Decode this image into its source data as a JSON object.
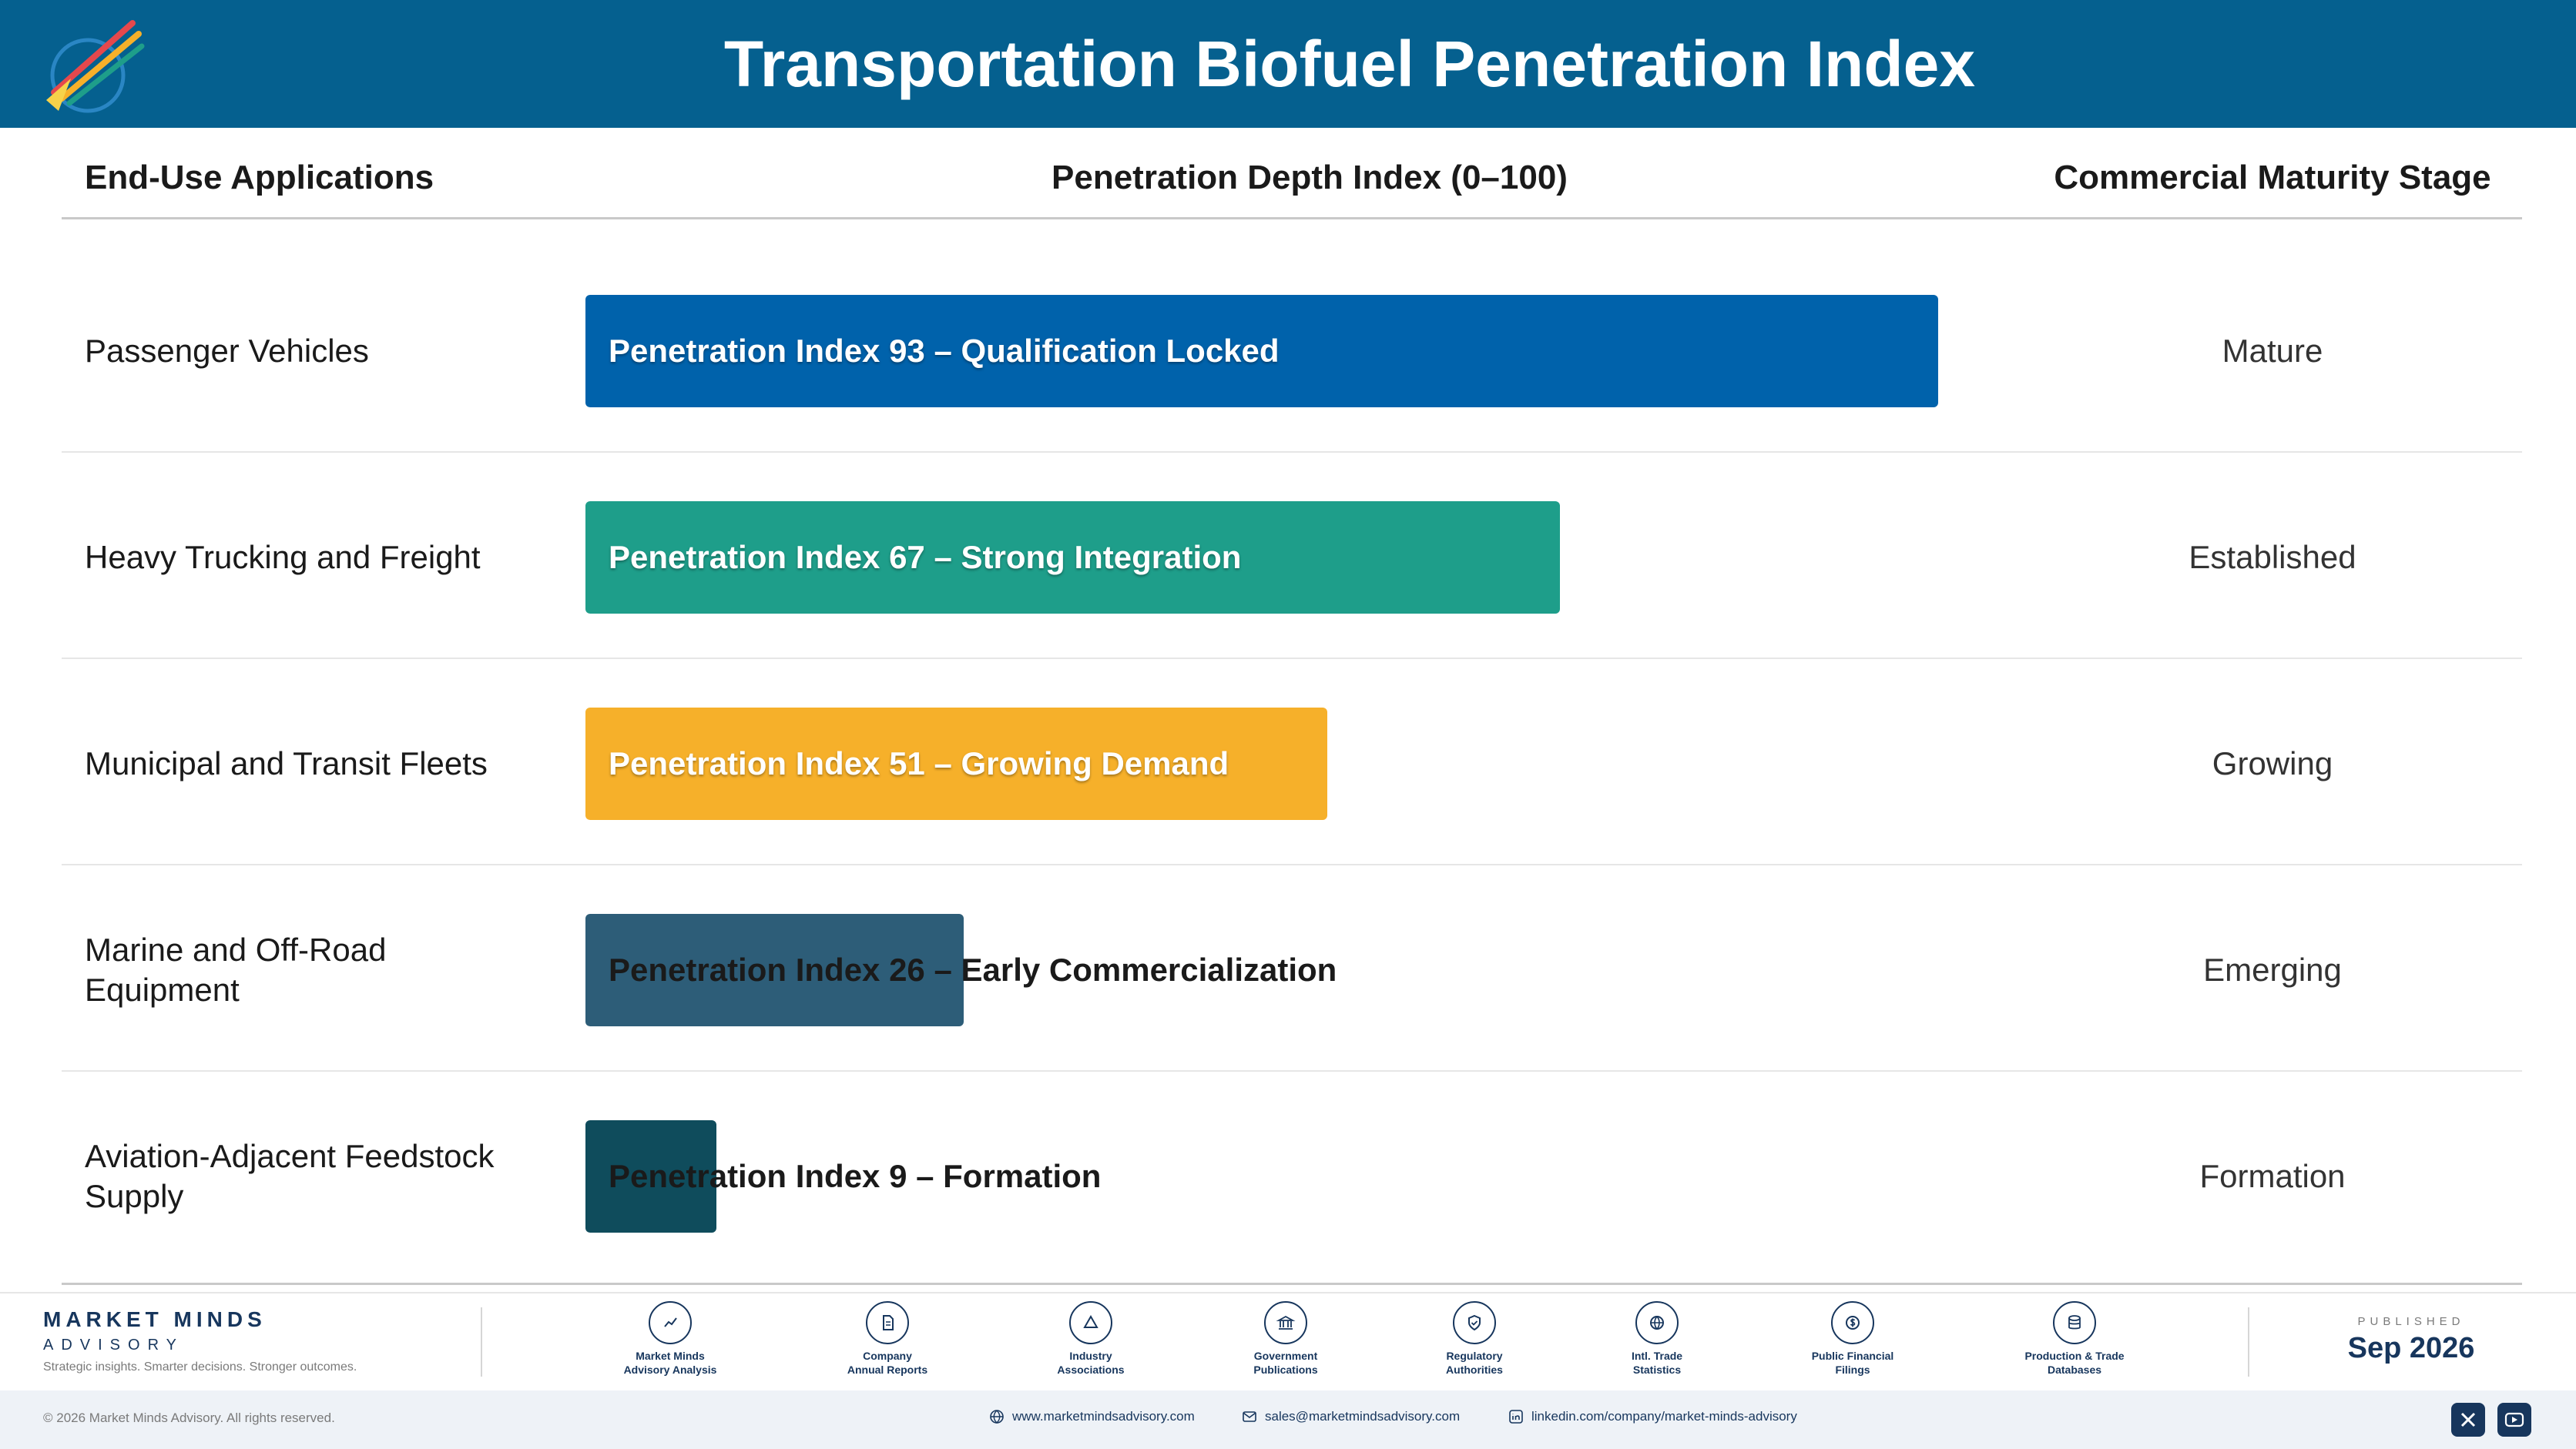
{
  "header": {
    "title": "Transportation Biofuel Penetration Index"
  },
  "columns": {
    "applications": "End-Use Applications",
    "index": "Penetration Depth Index (0–100)",
    "stage": "Commercial Maturity Stage"
  },
  "chart_data": {
    "type": "bar",
    "orientation": "horizontal",
    "xlim": [
      0,
      100
    ],
    "categories": [
      "Passenger Vehicles",
      "Heavy Trucking and Freight",
      "Municipal and Transit Fleets",
      "Marine and Off-Road Equipment",
      "Aviation-Adjacent Feedstock Supply"
    ],
    "values": [
      93,
      67,
      51,
      26,
      9
    ],
    "bar_labels": [
      "Penetration Index 93 – Qualification Locked",
      "Penetration Index 67 – Strong Integration",
      "Penetration Index 51 – Growing Demand",
      "Penetration Index 26 – Early Commercialization",
      "Penetration Index 9 – Formation"
    ],
    "stages": [
      "Mature",
      "Established",
      "Growing",
      "Emerging",
      "Formation"
    ],
    "colors": [
      "#0062ab",
      "#1e9e8a",
      "#f6b02a",
      "#2d5d78",
      "#0f4c5c"
    ]
  },
  "footer": {
    "brand_name": "MARKET MINDS",
    "brand_sub": "ADVISORY",
    "tagline": "Strategic insights. Smarter decisions. Stronger outcomes.",
    "sources": [
      {
        "label": "Market Minds\nAdvisory Analysis",
        "icon": "trend-chart-icon"
      },
      {
        "label": "Company\nAnnual Reports",
        "icon": "document-icon"
      },
      {
        "label": "Industry\nAssociations",
        "icon": "network-icon"
      },
      {
        "label": "Government\nPublications",
        "icon": "government-building-icon"
      },
      {
        "label": "Regulatory\nAuthorities",
        "icon": "shield-check-icon"
      },
      {
        "label": "Intl. Trade\nStatistics",
        "icon": "globe-icon"
      },
      {
        "label": "Public Financial\nFilings",
        "icon": "dollar-coin-icon"
      },
      {
        "label": "Production & Trade\nDatabases",
        "icon": "database-icon"
      }
    ],
    "published_label": "PUBLISHED",
    "published_date": "Sep 2026",
    "copyright": "© 2026 Market Minds Advisory. All rights reserved.",
    "website": "www.marketmindsadvisory.com",
    "email": "sales@marketmindsadvisory.com",
    "linkedin": "linkedin.com/company/market-minds-advisory"
  }
}
